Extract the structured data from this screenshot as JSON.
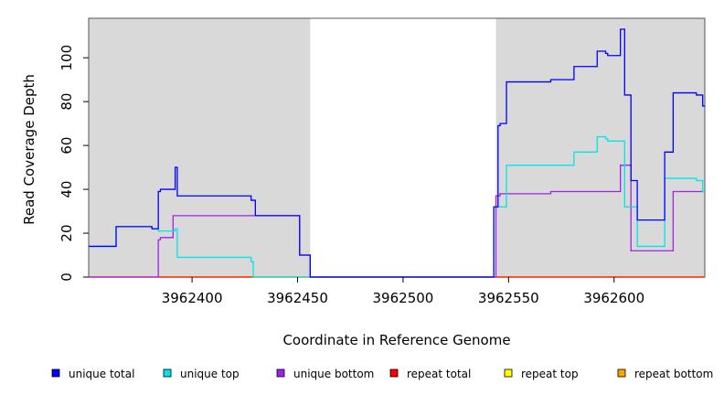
{
  "chart_data": {
    "type": "line",
    "step": true,
    "xlabel": "Coordinate in Reference Genome",
    "ylabel": "Read Coverage Depth",
    "xlim": [
      3962351,
      3962643
    ],
    "ylim": [
      0,
      118
    ],
    "x_ticks": [
      3962400,
      3962450,
      3962500,
      3962550,
      3962600
    ],
    "y_ticks": [
      0,
      20,
      40,
      60,
      80,
      100
    ],
    "grid": false,
    "legend_position": "bottom",
    "shaded_regions": [
      {
        "x_start": 3962351,
        "x_end": 3962456,
        "color": "#d9d9d9"
      },
      {
        "x_start": 3962544,
        "x_end": 3962643,
        "color": "#d9d9d9"
      }
    ],
    "series": [
      {
        "name": "unique total",
        "color": "#0000ff",
        "points": [
          [
            3962351,
            14
          ],
          [
            3962364,
            14
          ],
          [
            3962364,
            23
          ],
          [
            3962381,
            23
          ],
          [
            3962381,
            22
          ],
          [
            3962384,
            22
          ],
          [
            3962384,
            39
          ],
          [
            3962385,
            39
          ],
          [
            3962385,
            40
          ],
          [
            3962392,
            40
          ],
          [
            3962392,
            50
          ],
          [
            3962393,
            50
          ],
          [
            3962393,
            37
          ],
          [
            3962428,
            37
          ],
          [
            3962428,
            35
          ],
          [
            3962430,
            35
          ],
          [
            3962430,
            28
          ],
          [
            3962451,
            28
          ],
          [
            3962451,
            10
          ],
          [
            3962456,
            10
          ],
          [
            3962456,
            0
          ],
          [
            3962543,
            0
          ],
          [
            3962543,
            32
          ],
          [
            3962545,
            32
          ],
          [
            3962545,
            69
          ],
          [
            3962546,
            69
          ],
          [
            3962546,
            70
          ],
          [
            3962549,
            70
          ],
          [
            3962549,
            89
          ],
          [
            3962570,
            89
          ],
          [
            3962570,
            90
          ],
          [
            3962581,
            90
          ],
          [
            3962581,
            96
          ],
          [
            3962592,
            96
          ],
          [
            3962592,
            103
          ],
          [
            3962596,
            103
          ],
          [
            3962596,
            102
          ],
          [
            3962597,
            102
          ],
          [
            3962597,
            101
          ],
          [
            3962603,
            101
          ],
          [
            3962603,
            113
          ],
          [
            3962605,
            113
          ],
          [
            3962605,
            83
          ],
          [
            3962608,
            83
          ],
          [
            3962608,
            44
          ],
          [
            3962611,
            44
          ],
          [
            3962611,
            26
          ],
          [
            3962624,
            26
          ],
          [
            3962624,
            57
          ],
          [
            3962628,
            57
          ],
          [
            3962628,
            84
          ],
          [
            3962639,
            84
          ],
          [
            3962639,
            83
          ],
          [
            3962642,
            83
          ],
          [
            3962642,
            78
          ],
          [
            3962643,
            78
          ]
        ]
      },
      {
        "name": "unique top",
        "color": "#00e5e5",
        "points": [
          [
            3962351,
            14
          ],
          [
            3962364,
            14
          ],
          [
            3962364,
            23
          ],
          [
            3962381,
            23
          ],
          [
            3962381,
            22
          ],
          [
            3962384,
            22
          ],
          [
            3962384,
            21
          ],
          [
            3962392,
            21
          ],
          [
            3962392,
            22
          ],
          [
            3962393,
            22
          ],
          [
            3962393,
            9
          ],
          [
            3962428,
            9
          ],
          [
            3962428,
            7
          ],
          [
            3962429,
            7
          ],
          [
            3962429,
            0
          ],
          [
            3962543,
            0
          ],
          [
            3962543,
            32
          ],
          [
            3962549,
            32
          ],
          [
            3962549,
            51
          ],
          [
            3962581,
            51
          ],
          [
            3962581,
            57
          ],
          [
            3962592,
            57
          ],
          [
            3962592,
            64
          ],
          [
            3962596,
            64
          ],
          [
            3962596,
            63
          ],
          [
            3962597,
            63
          ],
          [
            3962597,
            62
          ],
          [
            3962605,
            62
          ],
          [
            3962605,
            32
          ],
          [
            3962611,
            32
          ],
          [
            3962611,
            14
          ],
          [
            3962624,
            14
          ],
          [
            3962624,
            45
          ],
          [
            3962639,
            45
          ],
          [
            3962639,
            44
          ],
          [
            3962642,
            44
          ],
          [
            3962642,
            39
          ],
          [
            3962643,
            39
          ]
        ]
      },
      {
        "name": "unique bottom",
        "color": "#a020f0",
        "points": [
          [
            3962351,
            0
          ],
          [
            3962384,
            0
          ],
          [
            3962384,
            17
          ],
          [
            3962385,
            17
          ],
          [
            3962385,
            18
          ],
          [
            3962391,
            18
          ],
          [
            3962391,
            28
          ],
          [
            3962451,
            28
          ],
          [
            3962451,
            10
          ],
          [
            3962456,
            10
          ],
          [
            3962456,
            0
          ],
          [
            3962544,
            0
          ],
          [
            3962544,
            37
          ],
          [
            3962546,
            37
          ],
          [
            3962546,
            38
          ],
          [
            3962570,
            38
          ],
          [
            3962570,
            39
          ],
          [
            3962603,
            39
          ],
          [
            3962603,
            51
          ],
          [
            3962608,
            51
          ],
          [
            3962608,
            12
          ],
          [
            3962628,
            12
          ],
          [
            3962628,
            39
          ],
          [
            3962643,
            39
          ]
        ]
      },
      {
        "name": "repeat total",
        "color": "#ff0000",
        "points": [
          [
            3962351,
            0
          ],
          [
            3962643,
            0
          ]
        ]
      },
      {
        "name": "repeat top",
        "color": "#ffff00",
        "points": [
          [
            3962351,
            0
          ],
          [
            3962643,
            0
          ]
        ]
      },
      {
        "name": "repeat bottom",
        "color": "#ffa500",
        "points": [
          [
            3962351,
            0
          ],
          [
            3962643,
            0
          ]
        ]
      }
    ]
  }
}
